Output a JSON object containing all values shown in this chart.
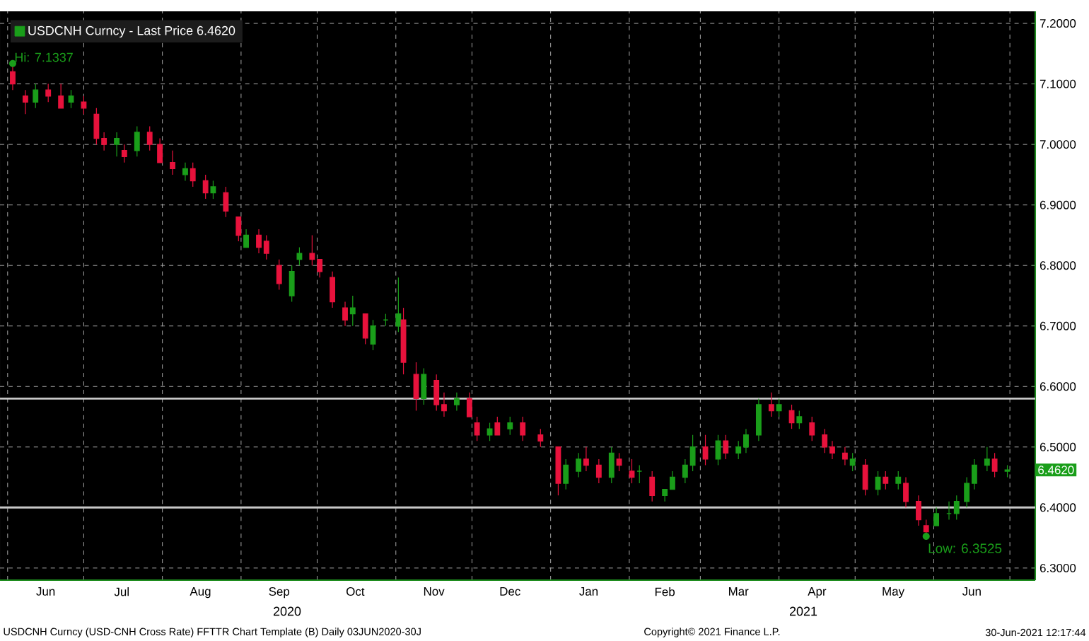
{
  "chart_data": {
    "type": "candlestick",
    "x": [
      "2020-06-03",
      "2020-06-08",
      "2020-06-12",
      "2020-06-17",
      "2020-06-22",
      "2020-06-26",
      "2020-07-01",
      "2020-07-06",
      "2020-07-09",
      "2020-07-14",
      "2020-07-17",
      "2020-07-22",
      "2020-07-27",
      "2020-07-31",
      "2020-08-05",
      "2020-08-10",
      "2020-08-13",
      "2020-08-18",
      "2020-08-21",
      "2020-08-26",
      "2020-08-31",
      "2020-09-03",
      "2020-09-08",
      "2020-09-11",
      "2020-09-16",
      "2020-09-21",
      "2020-09-24",
      "2020-09-29",
      "2020-10-02",
      "2020-10-07",
      "2020-10-12",
      "2020-10-15",
      "2020-10-20",
      "2020-10-23",
      "2020-10-28",
      "2020-11-02",
      "2020-11-04",
      "2020-11-09",
      "2020-11-12",
      "2020-11-17",
      "2020-11-20",
      "2020-11-25",
      "2020-11-30",
      "2020-12-03",
      "2020-12-08",
      "2020-12-11",
      "2020-12-16",
      "2020-12-21",
      "2020-12-28",
      "2021-01-04",
      "2021-01-07",
      "2021-01-12",
      "2021-01-15",
      "2021-01-20",
      "2021-01-25",
      "2021-01-28",
      "2021-02-02",
      "2021-02-05",
      "2021-02-10",
      "2021-02-15",
      "2021-02-18",
      "2021-02-23",
      "2021-02-26",
      "2021-03-03",
      "2021-03-08",
      "2021-03-11",
      "2021-03-16",
      "2021-03-19",
      "2021-03-24",
      "2021-03-29",
      "2021-04-01",
      "2021-04-06",
      "2021-04-09",
      "2021-04-14",
      "2021-04-19",
      "2021-04-22",
      "2021-04-27",
      "2021-04-30",
      "2021-05-05",
      "2021-05-10",
      "2021-05-13",
      "2021-05-18",
      "2021-05-21",
      "2021-05-26",
      "2021-05-29",
      "2021-06-02",
      "2021-06-07",
      "2021-06-10",
      "2021-06-14",
      "2021-06-17",
      "2021-06-22",
      "2021-06-25",
      "2021-06-30"
    ],
    "series": [
      {
        "name": "USDCNH Curncy - Last Price 6.4620",
        "color": "#1a9e1a",
        "ohlc": [
          [
            7.12,
            7.1337,
            7.09,
            7.1
          ],
          [
            7.08,
            7.09,
            7.05,
            7.07
          ],
          [
            7.07,
            7.1,
            7.06,
            7.09
          ],
          [
            7.09,
            7.1,
            7.07,
            7.08
          ],
          [
            7.08,
            7.1,
            7.06,
            7.06
          ],
          [
            7.07,
            7.09,
            7.06,
            7.08
          ],
          [
            7.07,
            7.08,
            7.05,
            7.06
          ],
          [
            7.05,
            7.06,
            7.0,
            7.01
          ],
          [
            7.01,
            7.02,
            6.99,
            7.0
          ],
          [
            7.0,
            7.02,
            6.98,
            7.01
          ],
          [
            6.99,
            7.0,
            6.97,
            6.98
          ],
          [
            6.99,
            7.03,
            6.98,
            7.02
          ],
          [
            7.02,
            7.03,
            6.99,
            7.0
          ],
          [
            7.0,
            7.01,
            6.97,
            6.97
          ],
          [
            6.97,
            6.99,
            6.95,
            6.96
          ],
          [
            6.95,
            6.97,
            6.94,
            6.96
          ],
          [
            6.96,
            6.97,
            6.93,
            6.94
          ],
          [
            6.94,
            6.95,
            6.91,
            6.92
          ],
          [
            6.92,
            6.94,
            6.91,
            6.93
          ],
          [
            6.92,
            6.93,
            6.88,
            6.89
          ],
          [
            6.88,
            6.88,
            6.84,
            6.85
          ],
          [
            6.83,
            6.86,
            6.83,
            6.85
          ],
          [
            6.85,
            6.86,
            6.82,
            6.83
          ],
          [
            6.84,
            6.85,
            6.81,
            6.82
          ],
          [
            6.8,
            6.81,
            6.76,
            6.77
          ],
          [
            6.75,
            6.8,
            6.74,
            6.79
          ],
          [
            6.81,
            6.83,
            6.8,
            6.82
          ],
          [
            6.82,
            6.85,
            6.8,
            6.81
          ],
          [
            6.81,
            6.81,
            6.78,
            6.79
          ],
          [
            6.78,
            6.79,
            6.73,
            6.74
          ],
          [
            6.73,
            6.74,
            6.7,
            6.71
          ],
          [
            6.72,
            6.75,
            6.7,
            6.73
          ],
          [
            6.72,
            6.72,
            6.67,
            6.68
          ],
          [
            6.67,
            6.71,
            6.66,
            6.7
          ],
          [
            6.71,
            6.72,
            6.7,
            6.71
          ],
          [
            6.7,
            6.78,
            6.69,
            6.72
          ],
          [
            6.71,
            6.73,
            6.62,
            6.64
          ],
          [
            6.62,
            6.64,
            6.56,
            6.58
          ],
          [
            6.58,
            6.63,
            6.57,
            6.62
          ],
          [
            6.61,
            6.62,
            6.56,
            6.57
          ],
          [
            6.57,
            6.59,
            6.55,
            6.56
          ],
          [
            6.57,
            6.59,
            6.56,
            6.58
          ],
          [
            6.58,
            6.59,
            6.55,
            6.55
          ],
          [
            6.54,
            6.55,
            6.51,
            6.52
          ],
          [
            6.52,
            6.54,
            6.51,
            6.53
          ],
          [
            6.54,
            6.55,
            6.52,
            6.52
          ],
          [
            6.53,
            6.55,
            6.52,
            6.54
          ],
          [
            6.54,
            6.55,
            6.51,
            6.52
          ],
          [
            6.52,
            6.53,
            6.5,
            6.51
          ],
          [
            6.5,
            6.5,
            6.42,
            6.44
          ],
          [
            6.44,
            6.48,
            6.43,
            6.47
          ],
          [
            6.46,
            6.49,
            6.45,
            6.48
          ],
          [
            6.48,
            6.5,
            6.46,
            6.47
          ],
          [
            6.47,
            6.48,
            6.44,
            6.45
          ],
          [
            6.45,
            6.5,
            6.44,
            6.49
          ],
          [
            6.48,
            6.49,
            6.46,
            6.47
          ],
          [
            6.46,
            6.48,
            6.44,
            6.45
          ],
          [
            6.46,
            6.47,
            6.44,
            6.46
          ],
          [
            6.45,
            6.46,
            6.41,
            6.42
          ],
          [
            6.42,
            6.43,
            6.41,
            6.43
          ],
          [
            6.43,
            6.46,
            6.43,
            6.45
          ],
          [
            6.45,
            6.48,
            6.44,
            6.47
          ],
          [
            6.47,
            6.52,
            6.46,
            6.5
          ],
          [
            6.5,
            6.52,
            6.47,
            6.48
          ],
          [
            6.48,
            6.52,
            6.47,
            6.51
          ],
          [
            6.51,
            6.52,
            6.48,
            6.49
          ],
          [
            6.49,
            6.51,
            6.48,
            6.5
          ],
          [
            6.5,
            6.53,
            6.49,
            6.52
          ],
          [
            6.52,
            6.58,
            6.51,
            6.57
          ],
          [
            6.57,
            6.59,
            6.55,
            6.56
          ],
          [
            6.56,
            6.58,
            6.55,
            6.57
          ],
          [
            6.56,
            6.57,
            6.53,
            6.54
          ],
          [
            6.54,
            6.56,
            6.53,
            6.55
          ],
          [
            6.54,
            6.55,
            6.51,
            6.52
          ],
          [
            6.52,
            6.53,
            6.49,
            6.5
          ],
          [
            6.5,
            6.51,
            6.48,
            6.49
          ],
          [
            6.49,
            6.5,
            6.47,
            6.48
          ],
          [
            6.47,
            6.49,
            6.46,
            6.48
          ],
          [
            6.47,
            6.48,
            6.42,
            6.43
          ],
          [
            6.43,
            6.46,
            6.42,
            6.45
          ],
          [
            6.45,
            6.46,
            6.43,
            6.44
          ],
          [
            6.44,
            6.46,
            6.43,
            6.45
          ],
          [
            6.44,
            6.45,
            6.4,
            6.41
          ],
          [
            6.41,
            6.42,
            6.37,
            6.38
          ],
          [
            6.37,
            6.38,
            6.3525,
            6.36
          ],
          [
            6.37,
            6.4,
            6.37,
            6.39
          ],
          [
            6.39,
            6.41,
            6.38,
            6.39
          ],
          [
            6.39,
            6.42,
            6.38,
            6.41
          ],
          [
            6.41,
            6.45,
            6.4,
            6.44
          ],
          [
            6.44,
            6.48,
            6.43,
            6.47
          ],
          [
            6.47,
            6.5,
            6.46,
            6.48
          ],
          [
            6.48,
            6.49,
            6.45,
            6.46
          ],
          [
            6.46,
            6.47,
            6.45,
            6.462
          ]
        ],
        "colors": [
          "#e8123c",
          "#e8123c",
          "#1a9e1a",
          "#e8123c",
          "#e8123c",
          "#1a9e1a",
          "#e8123c",
          "#e8123c",
          "#e8123c",
          "#1a9e1a",
          "#e8123c",
          "#1a9e1a",
          "#e8123c",
          "#e8123c",
          "#e8123c",
          "#1a9e1a",
          "#e8123c",
          "#e8123c",
          "#1a9e1a",
          "#e8123c",
          "#e8123c",
          "#1a9e1a",
          "#e8123c",
          "#e8123c",
          "#e8123c",
          "#1a9e1a",
          "#1a9e1a",
          "#e8123c",
          "#e8123c",
          "#e8123c",
          "#e8123c",
          "#1a9e1a",
          "#e8123c",
          "#1a9e1a",
          "#1a9e1a",
          "#1a9e1a",
          "#e8123c",
          "#e8123c",
          "#1a9e1a",
          "#e8123c",
          "#e8123c",
          "#1a9e1a",
          "#e8123c",
          "#e8123c",
          "#1a9e1a",
          "#e8123c",
          "#1a9e1a",
          "#e8123c",
          "#e8123c",
          "#e8123c",
          "#1a9e1a",
          "#1a9e1a",
          "#e8123c",
          "#e8123c",
          "#1a9e1a",
          "#e8123c",
          "#e8123c",
          "#1a9e1a",
          "#e8123c",
          "#1a9e1a",
          "#1a9e1a",
          "#1a9e1a",
          "#1a9e1a",
          "#e8123c",
          "#1a9e1a",
          "#e8123c",
          "#1a9e1a",
          "#1a9e1a",
          "#1a9e1a",
          "#e8123c",
          "#1a9e1a",
          "#e8123c",
          "#1a9e1a",
          "#e8123c",
          "#e8123c",
          "#e8123c",
          "#e8123c",
          "#1a9e1a",
          "#e8123c",
          "#1a9e1a",
          "#e8123c",
          "#1a9e1a",
          "#e8123c",
          "#e8123c",
          "#e8123c",
          "#1a9e1a",
          "#1a9e1a",
          "#1a9e1a",
          "#1a9e1a",
          "#1a9e1a",
          "#1a9e1a",
          "#e8123c",
          "#1a9e1a"
        ]
      }
    ],
    "xlim": [
      "2020-05-29",
      "2021-07-11"
    ],
    "xticks": [
      {
        "value": "2020-06-01",
        "label": null
      },
      {
        "value": "2020-06-16",
        "label": "Jun"
      },
      {
        "value": "2020-07-01",
        "label": null
      },
      {
        "value": "2020-07-16",
        "label": "Jul"
      },
      {
        "value": "2020-08-01",
        "label": null
      },
      {
        "value": "2020-08-16",
        "label": "Aug"
      },
      {
        "value": "2020-09-01",
        "label": null
      },
      {
        "value": "2020-09-16",
        "label": "Sep"
      },
      {
        "value": "2020-10-01",
        "label": null
      },
      {
        "value": "2020-10-16",
        "label": "Oct"
      },
      {
        "value": "2020-11-01",
        "label": null
      },
      {
        "value": "2020-11-16",
        "label": "Nov"
      },
      {
        "value": "2020-12-01",
        "label": null
      },
      {
        "value": "2020-12-16",
        "label": "Dec"
      },
      {
        "value": "2021-01-01",
        "label": null
      },
      {
        "value": "2021-01-16",
        "label": "Jan"
      },
      {
        "value": "2021-02-01",
        "label": null
      },
      {
        "value": "2021-02-15",
        "label": "Feb"
      },
      {
        "value": "2021-03-01",
        "label": null
      },
      {
        "value": "2021-03-16",
        "label": "Mar"
      },
      {
        "value": "2021-04-01",
        "label": null
      },
      {
        "value": "2021-04-16",
        "label": "Apr"
      },
      {
        "value": "2021-05-01",
        "label": null
      },
      {
        "value": "2021-05-16",
        "label": "May"
      },
      {
        "value": "2021-06-01",
        "label": null
      },
      {
        "value": "2021-06-16",
        "label": "Jun"
      },
      {
        "value": "2021-07-01",
        "label": null
      }
    ],
    "ylim": [
      6.28,
      7.22
    ],
    "yticks": [
      {
        "value": 6.3,
        "label": "6.3000"
      },
      {
        "value": 6.4,
        "label": "6.4000"
      },
      {
        "value": 6.5,
        "label": "6.5000"
      },
      {
        "value": 6.6,
        "label": "6.6000"
      },
      {
        "value": 6.7,
        "label": "6.7000"
      },
      {
        "value": 6.8,
        "label": "6.8000"
      },
      {
        "value": 6.9,
        "label": "6.9000"
      },
      {
        "value": 7.0,
        "label": "7.0000"
      },
      {
        "value": 7.1,
        "label": "7.1000"
      },
      {
        "value": 7.2,
        "label": "7.2000"
      }
    ],
    "ref_lines": [
      {
        "axis": "y",
        "value": 6.58,
        "label": null,
        "color": "#c8c8c8"
      },
      {
        "axis": "y",
        "value": 6.4,
        "label": null,
        "color": "#c8c8c8"
      }
    ],
    "grid": true,
    "legend": "top left",
    "annotations": [
      {
        "text": "Hi: 7.1337",
        "x": "2020-06-03",
        "y": 7.1337
      },
      {
        "text": "Low: 6.3525",
        "x": "2021-05-29",
        "y": 6.3525
      },
      {
        "text": "6.4620",
        "x": "2021-06-30",
        "y": 6.462
      },
      "2020",
      "2021",
      "USDCNH Curncy (USD-CNH Cross Rate) FFTTR Chart Template (B)  Daily 03JUN2020-30J",
      "Copyright© 2021 Finance L.P.",
      "30-Jun-2021 12:17:44"
    ]
  }
}
